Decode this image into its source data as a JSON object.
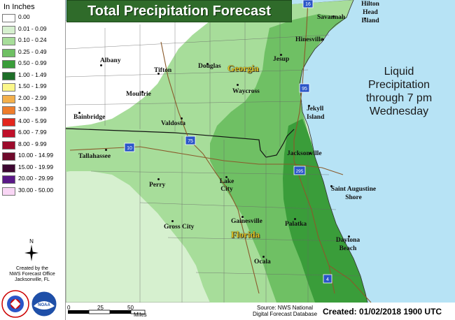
{
  "title": "Total Precipitation Forecast",
  "legend": {
    "title": "In Inches",
    "items": [
      {
        "label": "0.00",
        "color": "#ffffff"
      },
      {
        "label": "0.01 - 0.09",
        "color": "#d6f0cf"
      },
      {
        "label": "0.10 - 0.24",
        "color": "#a7dd9a"
      },
      {
        "label": "0.25 - 0.49",
        "color": "#6fc064"
      },
      {
        "label": "0.50 - 0.99",
        "color": "#3a9d3a"
      },
      {
        "label": "1.00 - 1.49",
        "color": "#1e6e28"
      },
      {
        "label": "1.50 - 1.99",
        "color": "#fbf78a"
      },
      {
        "label": "2.00 - 2.99",
        "color": "#f3b04c"
      },
      {
        "label": "3.00 - 3.99",
        "color": "#ee7d2c"
      },
      {
        "label": "4.00 - 5.99",
        "color": "#e3261d"
      },
      {
        "label": "6.00 - 7.99",
        "color": "#c0102a"
      },
      {
        "label": "8.00 - 9.99",
        "color": "#9c0a2b"
      },
      {
        "label": "10.00 - 14.99",
        "color": "#6e0a2b"
      },
      {
        "label": "15.00 - 19.99",
        "color": "#3d0731"
      },
      {
        "label": "20.00 - 29.99",
        "color": "#5a1887"
      },
      {
        "label": "30.00 - 50.00",
        "color": "#f9d6f5"
      }
    ]
  },
  "annotation": {
    "lines": [
      "Liquid",
      "Precipitation",
      "through 7 pm",
      "Wednesday"
    ]
  },
  "credit": {
    "lines": [
      "Created by the",
      "NWS Forecast Office",
      "Jacksonville, FL"
    ]
  },
  "logos": {
    "nws_text": "NATIONAL WEATHER SERVICE",
    "noaa_text": "NOAA"
  },
  "compass": {
    "north": "N"
  },
  "scale": {
    "ticks": [
      "0",
      "25",
      "50"
    ],
    "unit": "Miles"
  },
  "source": {
    "lines": [
      "Source: NWS National",
      "Digital Forecast Database"
    ]
  },
  "created": "Created: 01/02/2018 1900 UTC",
  "states": [
    "Georgia",
    "Florida"
  ],
  "cities": [
    "Albany",
    "Tifton",
    "Douglas",
    "Jesup",
    "Hinesville",
    "Savannah",
    "Hilton Head Island",
    "Moultrie",
    "Waycross",
    "Bainbridge",
    "Valdosta",
    "Jekyll Island",
    "Tallahassee",
    "Jacksonville",
    "Perry",
    "Lake City",
    "Saint Augustine Shore",
    "Gross City",
    "Gainesville",
    "Palatka",
    "Ocala",
    "Daytona Beach"
  ],
  "highways": [
    "16",
    "95",
    "10",
    "75",
    "295",
    "4"
  ],
  "colors": {
    "ocean": "#b7e3f5",
    "title_bg": "#2f6b2a",
    "title_text": "#ffffff",
    "state_label": "#e0c020",
    "highway_shield": "#2a55c8",
    "roads": "#8a5a2b"
  }
}
